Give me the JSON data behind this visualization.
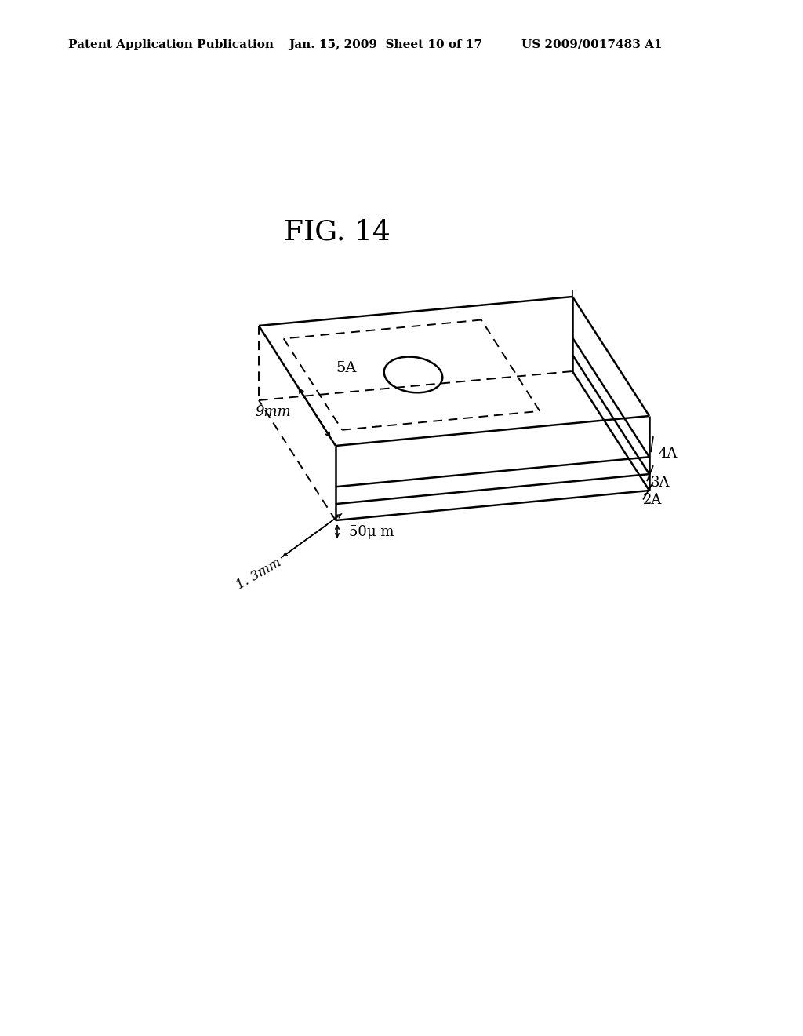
{
  "title": "FIG. 14",
  "header_left": "Patent Application Publication",
  "header_mid": "Jan. 15, 2009  Sheet 10 of 17",
  "header_right": "US 2009/0017483 A1",
  "bg_color": "#ffffff",
  "line_color": "#000000",
  "label_9mm": "9mm",
  "label_1_3mm": "1. 3mm",
  "label_50um": "50μ m",
  "label_5A": "5A",
  "label_2A": "2A",
  "label_3A": "3A",
  "label_4A": "4A",
  "lw_solid": 1.8,
  "lw_dashed": 1.4,
  "fontsize_header": 11,
  "fontsize_title": 26,
  "fontsize_label": 13
}
